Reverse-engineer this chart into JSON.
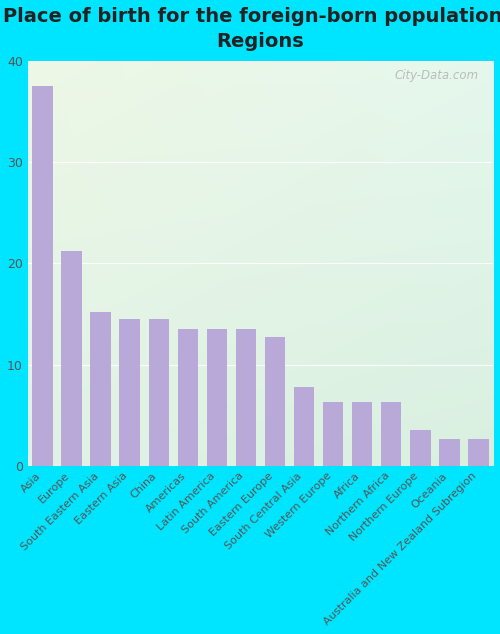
{
  "title": "Place of birth for the foreign-born population -\nRegions",
  "categories": [
    "Asia",
    "Europe",
    "South Eastern Asia",
    "Eastern Asia",
    "China",
    "Americas",
    "Latin America",
    "South America",
    "Eastern Europe",
    "South Central Asia",
    "Western Europe",
    "Africa",
    "Northern Africa",
    "Northern Europe",
    "Oceania",
    "Australia and New Zealand Subregion"
  ],
  "values": [
    37.5,
    21.2,
    15.2,
    14.5,
    14.5,
    13.5,
    13.5,
    13.5,
    12.7,
    7.8,
    6.3,
    6.3,
    6.3,
    3.5,
    2.6,
    2.6
  ],
  "bar_color": "#b8a9d9",
  "bg_top_left": "#eef5e8",
  "bg_top_right": "#e8f5ee",
  "bg_bottom_left": "#d8ede8",
  "bg_bottom_right": "#c8e8d8",
  "outer_background": "#00e5ff",
  "ylim": [
    0,
    40
  ],
  "yticks": [
    0,
    10,
    20,
    30,
    40
  ],
  "title_fontsize": 14,
  "tick_label_fontsize": 8,
  "watermark": "City-Data.com",
  "grid_color": "#ffffff",
  "bar_width": 0.7
}
